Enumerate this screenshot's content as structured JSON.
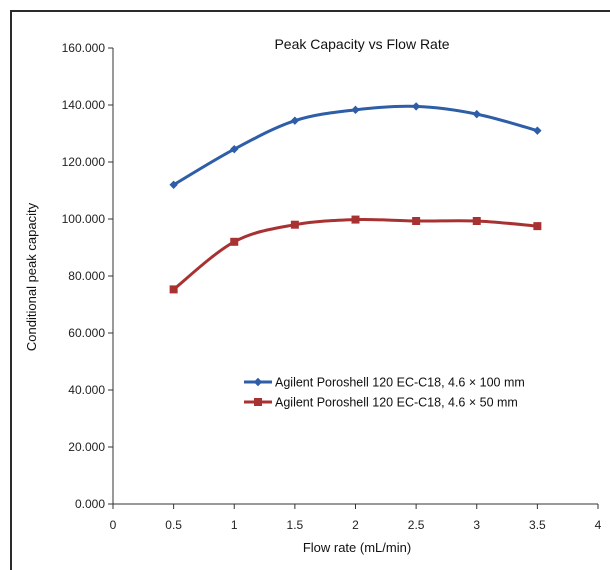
{
  "chart_data": {
    "type": "line",
    "title": "Peak Capacity vs Flow Rate",
    "xlabel": "Flow rate (mL/min)",
    "ylabel": "Conditional peak capacity",
    "xlim": [
      0,
      4
    ],
    "ylim": [
      0,
      160
    ],
    "x_ticks": [
      "0",
      "0.5",
      "1",
      "1.5",
      "2",
      "2.5",
      "3",
      "3.5",
      "4"
    ],
    "y_ticks": [
      "0.000",
      "20.000",
      "40.000",
      "60.000",
      "80.000",
      "100.000",
      "120.000",
      "140.000",
      "160.000"
    ],
    "grid": false,
    "legend_position": "center-right",
    "series": [
      {
        "name": "Agilent Poroshell 120 EC-C18, 4.6 × 100 mm",
        "color": "#2e5ea8",
        "marker": "diamond",
        "x": [
          0.5,
          1,
          1.5,
          2,
          2.5,
          3,
          3.5
        ],
        "y": [
          112,
          124.5,
          134.5,
          138.3,
          139.5,
          136.8,
          131
        ]
      },
      {
        "name": "Agilent Poroshell 120 EC-C18, 4.6 × 50 mm",
        "color": "#a83232",
        "marker": "square",
        "x": [
          0.5,
          1,
          1.5,
          2,
          2.5,
          3,
          3.5
        ],
        "y": [
          75.3,
          92,
          98,
          99.8,
          99.3,
          99.3,
          97.5
        ]
      }
    ]
  }
}
